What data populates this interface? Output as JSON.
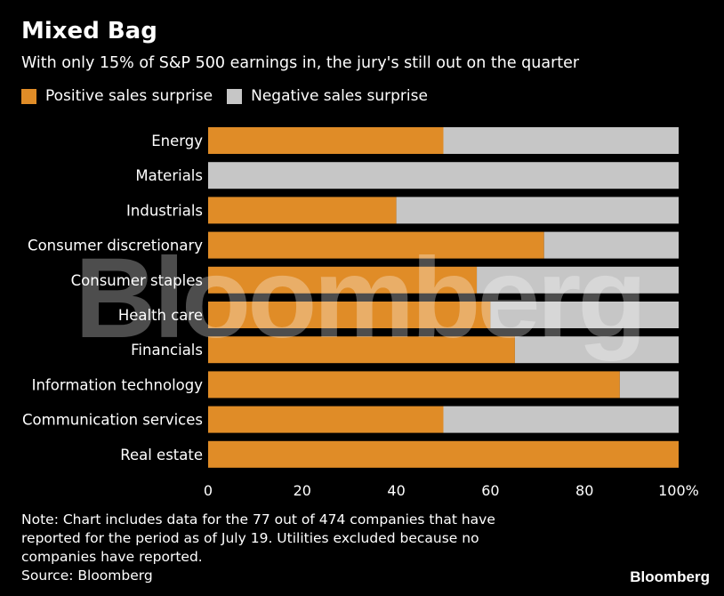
{
  "header": {
    "title": "Mixed Bag",
    "subtitle": "With only 15% of S&P 500 earnings in, the jury's still out on the quarter"
  },
  "chart_data": {
    "type": "bar",
    "orientation": "horizontal",
    "stacked": true,
    "categories": [
      "Energy",
      "Materials",
      "Industrials",
      "Consumer discretionary",
      "Consumer staples",
      "Health care",
      "Financials",
      "Information technology",
      "Communication services",
      "Real estate"
    ],
    "series": [
      {
        "name": "Positive sales surprise",
        "color": "#e08c27",
        "values": [
          50,
          0,
          40,
          71.4,
          57.1,
          60,
          65.2,
          87.5,
          50,
          100
        ]
      },
      {
        "name": "Negative sales surprise",
        "color": "#c6c6c6",
        "values": [
          50,
          100,
          60,
          28.6,
          42.9,
          40,
          34.8,
          12.5,
          50,
          0
        ]
      }
    ],
    "xlim": [
      0,
      100
    ],
    "xticks": [
      "0",
      "20",
      "40",
      "60",
      "80",
      "100%"
    ],
    "legend_position": "top-left",
    "grid": false
  },
  "footer": {
    "note_lines": [
      "Note: Chart includes data for the 77 out of 474 companies that have",
      "reported for the period as of July 19. Utilities excluded because no",
      "companies have reported.",
      "Source: Bloomberg"
    ],
    "brand": "Bloomberg",
    "watermark": "Bloomberg"
  },
  "colors": {
    "background": "#000000",
    "text": "#ffffff",
    "positive": "#e08c27",
    "negative": "#c6c6c6"
  }
}
